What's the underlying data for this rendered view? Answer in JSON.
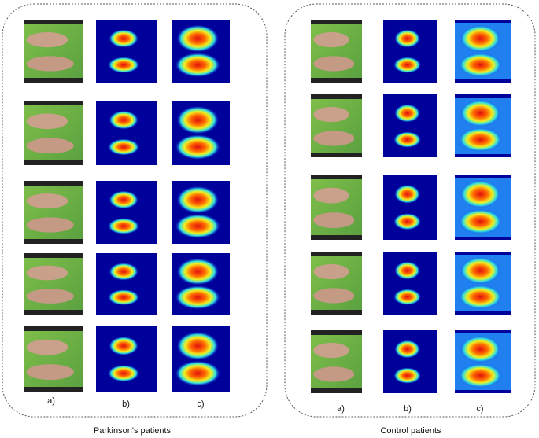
{
  "panels": [
    {
      "caption": "Parkinson's patients",
      "column_labels": [
        "a)",
        "b)",
        "c)"
      ]
    },
    {
      "caption": "Control patients",
      "column_labels": [
        "a)",
        "b)",
        "c)"
      ]
    }
  ]
}
